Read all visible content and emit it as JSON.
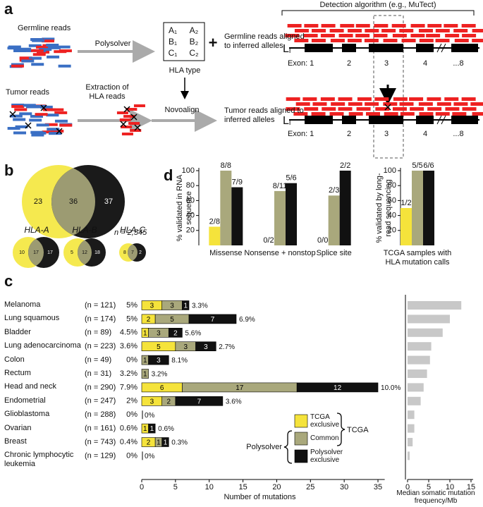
{
  "panel_a": {
    "label": "a",
    "germline_reads": "Germline reads",
    "polysolver": "Polysolver",
    "hla_alleles": [
      "A₁",
      "A₂",
      "B₁",
      "B₂",
      "C₁",
      "C₂"
    ],
    "hla_type": "HLA type",
    "plus": "+",
    "germline_aligned": "Germline reads aligned to inferred alleles",
    "detection": "Detection algorithm (e.g., MuTect)",
    "tumor_reads": "Tumor reads",
    "extraction": "Extraction of HLA reads",
    "novoalign": "Novoalign",
    "tumor_aligned": "Tumor reads aligned to inferred alleles",
    "locus": "Lᵢ",
    "exons": [
      "Exon: 1",
      "2",
      "3",
      "4",
      "...8"
    ]
  },
  "panel_b": {
    "label": "b",
    "overall": {
      "tcga": 23,
      "common": 36,
      "polysolver": 37
    },
    "n_label": "n = 2,545",
    "genes": [
      {
        "name": "HLA-A",
        "tcga": 10,
        "common": 17,
        "polysolver": 17
      },
      {
        "name": "HLA-B",
        "tcga": 5,
        "common": 12,
        "polysolver": 18
      },
      {
        "name": "HLA-C",
        "tcga": 8,
        "common": 7,
        "polysolver": 2
      }
    ]
  },
  "chart_data": [
    {
      "type": "bar",
      "panel": "d",
      "ylabel": "% validated in RNA sequence",
      "categories": [
        "Missense",
        "Nonsense + nonstop",
        "Splice site"
      ],
      "series": [
        {
          "color": "#f5e33b",
          "values": [
            25,
            0,
            0
          ],
          "value_labels": [
            "2/8",
            "0/2",
            "0/0"
          ]
        },
        {
          "color": "#a9a87c",
          "values": [
            100,
            72.7,
            66.7
          ],
          "value_labels": [
            "8/8",
            "8/11",
            "2/3"
          ]
        },
        {
          "color": "#111111",
          "values": [
            77.8,
            83.3,
            100
          ],
          "value_labels": [
            "7/9",
            "5/6",
            "2/2"
          ]
        }
      ],
      "ylim": [
        0,
        100
      ],
      "yticks": [
        20,
        40,
        60,
        80,
        100
      ]
    },
    {
      "type": "bar",
      "ylabel": "% validated by long-read sequencing",
      "categories": [
        "TCGA samples with HLA mutation calls"
      ],
      "series": [
        {
          "color": "#f5e33b",
          "values": [
            50
          ],
          "value_labels": [
            "1/2"
          ]
        },
        {
          "color": "#a9a87c",
          "values": [
            100
          ],
          "value_labels": [
            "5/5"
          ]
        },
        {
          "color": "#111111",
          "values": [
            100
          ],
          "value_labels": [
            "6/6"
          ]
        }
      ],
      "ylim": [
        0,
        100
      ],
      "yticks": [
        20,
        40,
        60,
        80,
        100
      ]
    },
    {
      "type": "stacked-hbar",
      "panel": "c",
      "categories": [
        "Melanoma",
        "Lung squamous",
        "Bladder",
        "Lung adenocarcinoma",
        "Colon",
        "Rectum",
        "Head and neck",
        "Endometrial",
        "Glioblastoma",
        "Ovarian",
        "Breast",
        "Chronic lymphocytic leukemia"
      ],
      "n_labels": [
        "(n = 121)",
        "(n = 174)",
        "(n = 89)",
        "(n = 223)",
        "(n = 49)",
        "(n = 31)",
        "(n = 290)",
        "(n = 247)",
        "(n = 288)",
        "(n = 161)",
        "(n = 743)",
        "(n = 129)"
      ],
      "tcga_rates": [
        "5%",
        "5%",
        "4.5%",
        "3.6%",
        "0%",
        "3.2%",
        "7.9%",
        "2%",
        "0%",
        "0.6%",
        "0.4%",
        "0%"
      ],
      "polysolver_rates": [
        "3.3%",
        "6.9%",
        "5.6%",
        "2.7%",
        "8.1%",
        "3.2%",
        "10.0%",
        "3.6%",
        "0%",
        "0.6%",
        "0.3%",
        "0%"
      ],
      "series": [
        {
          "name": "TCGA exclusive",
          "color": "#f5e33b",
          "values": [
            3,
            2,
            1,
            5,
            0,
            0,
            6,
            3,
            0,
            1,
            2,
            0
          ]
        },
        {
          "name": "Common",
          "color": "#a9a87c",
          "values": [
            3,
            5,
            3,
            3,
            1,
            1,
            17,
            2,
            0,
            0,
            1,
            0
          ]
        },
        {
          "name": "Polysolver exclusive",
          "color": "#111111",
          "values": [
            1,
            7,
            2,
            3,
            3,
            0,
            12,
            7,
            0,
            1,
            1,
            0
          ]
        }
      ],
      "legend_groups": [
        "TCGA",
        "Polysolver"
      ],
      "xlabel": "Number of mutations",
      "xlim": [
        0,
        36
      ],
      "xticks": [
        0,
        5,
        10,
        15,
        20,
        25,
        30,
        35
      ]
    },
    {
      "type": "hbar",
      "color": "#c8c8c8",
      "values": [
        12.7,
        10,
        8.3,
        5.6,
        5.3,
        4.6,
        3.8,
        3.1,
        1.6,
        1.6,
        1.2,
        0.5
      ],
      "xlabel": "Median somatic mutation frequency/Mb",
      "xlim": [
        0,
        15.5
      ],
      "xticks": [
        0,
        5,
        10,
        15
      ]
    }
  ]
}
